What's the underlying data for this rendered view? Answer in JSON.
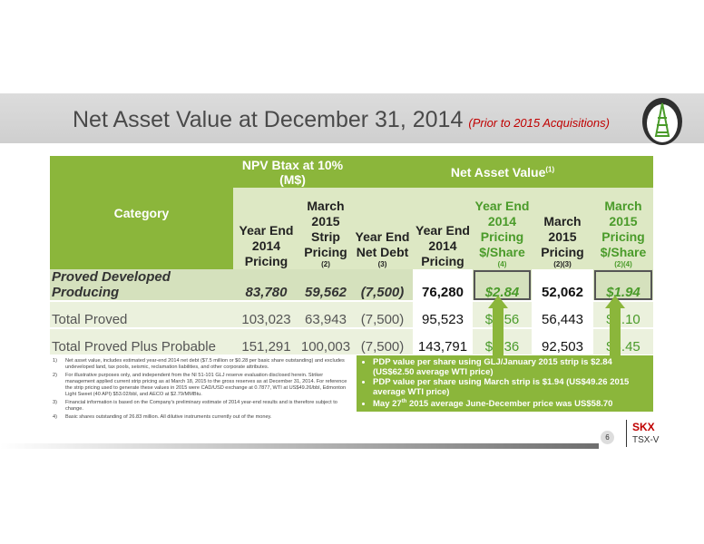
{
  "title": {
    "main": "Net Asset Value at December 31, 2014",
    "sub": "(Prior to 2015 Acquisitions)"
  },
  "table": {
    "category_header": "Category",
    "npv_header": "NPV Btax at 10% (M$)",
    "nav_header": "Net Asset Value",
    "nav_header_sup": "(1)",
    "columns": [
      {
        "label": "Year End 2014 Pricing",
        "note": ""
      },
      {
        "label": "March 2015 Strip Pricing",
        "note": "(2)"
      },
      {
        "label": "Year End Net Debt",
        "note": "(3)"
      },
      {
        "label": "Year End 2014 Pricing",
        "note": ""
      },
      {
        "label": "Year End 2014 Pricing $/Share",
        "note": "(4)"
      },
      {
        "label": "March 2015 Pricing",
        "note": "(2)(3)"
      },
      {
        "label": "March 2015 Pricing $/Share",
        "note": "(2)(4)"
      }
    ],
    "rows": [
      {
        "category": "Proved Developed Producing",
        "values": [
          "83,780",
          "59,562",
          "(7,500)",
          "76,280",
          "$2.84",
          "52,062",
          "$1.94"
        ]
      },
      {
        "category": "Total Proved",
        "values": [
          "103,023",
          "63,943",
          "(7,500)",
          "95,523",
          "$3.56",
          "56,443",
          "$2.10"
        ]
      },
      {
        "category": "Total Proved Plus Probable",
        "values": [
          "151,291",
          "100,003",
          "(7,500)",
          "143,791",
          "$5.36",
          "92,503",
          "$3.45"
        ]
      }
    ]
  },
  "notes": [
    {
      "num": "1)",
      "text": "Net asset value, includes estimated year-end 2014 net debt ($7.5 million or $0.28 per basic share outstanding) and excludes undeveloped land, tax pools, seismic, reclamation liabilities, and other corporate attributes."
    },
    {
      "num": "2)",
      "text": "For illustrative purposes only, and independent from the NI 51-101 GLJ reserve evaluation disclosed herein. Striker management applied current strip pricing as at March 18, 2015 to the gross reserves as at December 31, 2014. For reference the strip pricing used to generate these values in 2015 were CAD/USD exchange at 0.7877, WTI at US$49.26/bbl, Edmonton Light Sweet (40 API) $53.02/bbl, and AECO at $2.79/MMBtu."
    },
    {
      "num": "3)",
      "text": "Financial information is based on the Company's preliminary estimate of 2014 year-end results and is therefore subject to change."
    },
    {
      "num": "4)",
      "text": "Basic shares outstanding of 26.83 million. All dilutive instruments currently out of the money."
    }
  ],
  "callout": {
    "b1": "PDP value per share using GLJ/January 2015 strip is $2.84 (US$62.50 average WTI price)",
    "b2": "PDP value per share using March strip is $1.94 (US$49.26 2015 average WTI price)",
    "b3_pre": "May 27",
    "b3_sup": "th",
    "b3_post": " 2015 average June-December price was US$58.70"
  },
  "footer": {
    "page": "6",
    "ticker1": "SKX",
    "ticker2": "TSX-V"
  },
  "colors": {
    "green": "#8bb63b",
    "red_accent": "#c00000"
  }
}
